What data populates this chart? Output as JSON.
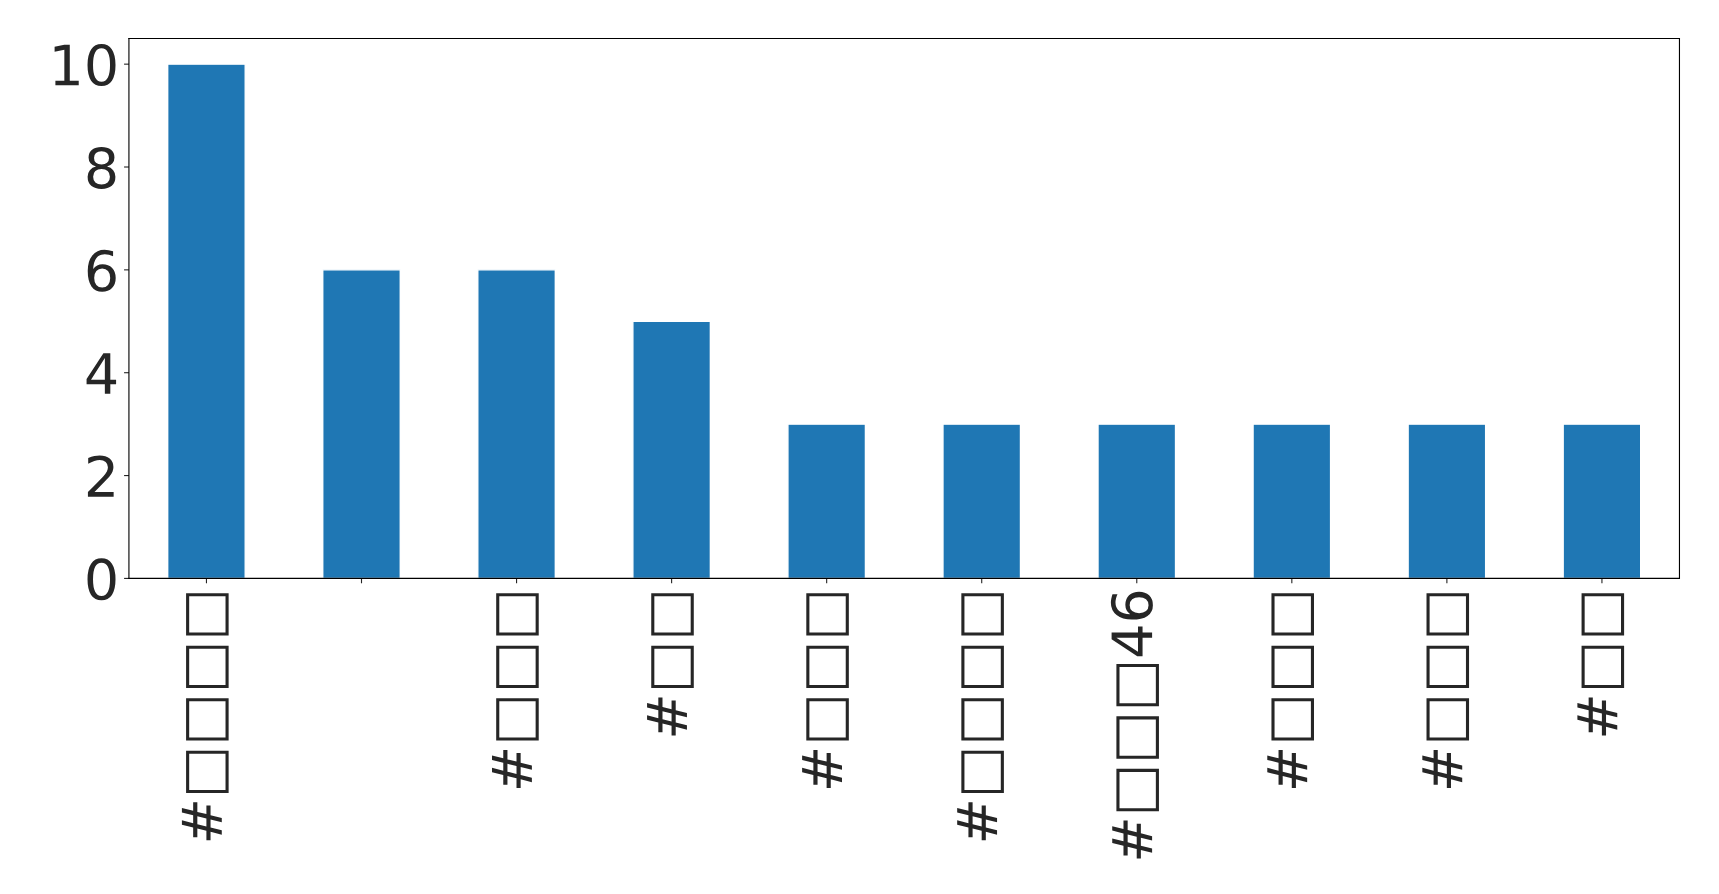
{
  "chart_data": {
    "type": "bar",
    "categories": [
      "#□□□□",
      null,
      "#□□□",
      "#□□",
      "#□□□",
      "#□□□□",
      "#□□□46",
      "#□□□",
      "#□□□",
      "#□□"
    ],
    "values": [
      10,
      6,
      6,
      5,
      3,
      3,
      3,
      3,
      3,
      3
    ],
    "color": "#1f77b4",
    "ylim": [
      0,
      10.5
    ],
    "yticks": [
      0,
      2,
      4,
      6,
      8,
      10
    ],
    "grid": false
  }
}
